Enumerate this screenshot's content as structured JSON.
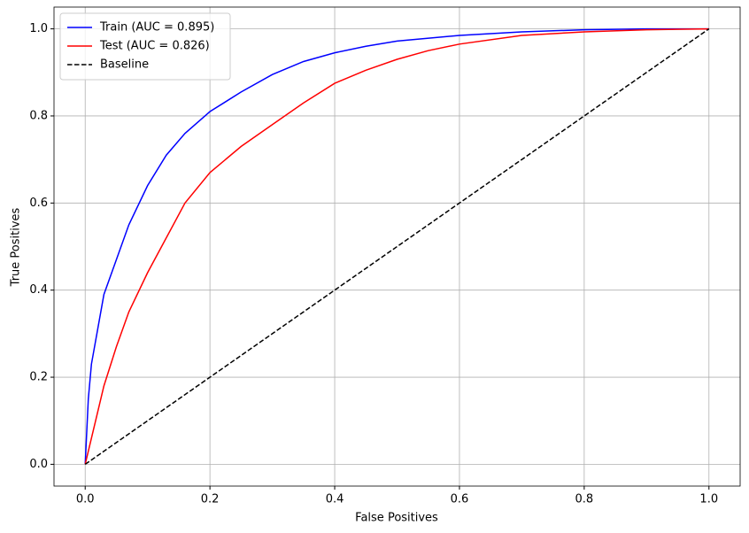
{
  "chart_data": {
    "type": "line",
    "x_label": "False Positives",
    "y_label": "True Positives",
    "xlim": [
      -0.05,
      1.05
    ],
    "ylim": [
      -0.05,
      1.05
    ],
    "xticks": [
      {
        "value": 0,
        "label": "0.0"
      },
      0.2,
      0.4,
      0.6,
      0.8,
      {
        "value": 1,
        "label": "1.0"
      }
    ],
    "yticks": [
      {
        "value": 0,
        "label": "0.0"
      },
      0.2,
      0.4,
      0.6,
      0.8,
      {
        "value": 1,
        "label": "1.0"
      }
    ],
    "grid": true,
    "legend": "upper left",
    "series": [
      {
        "name": "Train (AUC = 0.895)",
        "color": "#0000ff",
        "dash": "solid",
        "x": [
          0,
          0.005,
          0.01,
          0.02,
          0.03,
          0.05,
          0.07,
          0.1,
          0.13,
          0.16,
          0.2,
          0.25,
          0.3,
          0.35,
          0.4,
          0.45,
          0.5,
          0.6,
          0.7,
          0.8,
          0.9,
          1
        ],
        "values": [
          0,
          0.15,
          0.23,
          0.31,
          0.39,
          0.47,
          0.55,
          0.64,
          0.71,
          0.76,
          0.81,
          0.855,
          0.895,
          0.925,
          0.945,
          0.96,
          0.972,
          0.985,
          0.993,
          0.998,
          1,
          1
        ]
      },
      {
        "name": "Test (AUC = 0.826)",
        "color": "#ff0000",
        "dash": "solid",
        "x": [
          0,
          0.01,
          0.02,
          0.03,
          0.05,
          0.07,
          0.1,
          0.13,
          0.16,
          0.2,
          0.25,
          0.3,
          0.35,
          0.4,
          0.45,
          0.5,
          0.55,
          0.6,
          0.7,
          0.8,
          0.9,
          1
        ],
        "values": [
          0,
          0.06,
          0.12,
          0.18,
          0.27,
          0.35,
          0.44,
          0.52,
          0.6,
          0.67,
          0.73,
          0.78,
          0.83,
          0.875,
          0.905,
          0.93,
          0.95,
          0.965,
          0.985,
          0.993,
          0.998,
          1
        ]
      },
      {
        "name": "Baseline",
        "color": "#000000",
        "dash": "dashed",
        "x": [
          0,
          1
        ],
        "values": [
          0,
          1
        ]
      }
    ]
  }
}
